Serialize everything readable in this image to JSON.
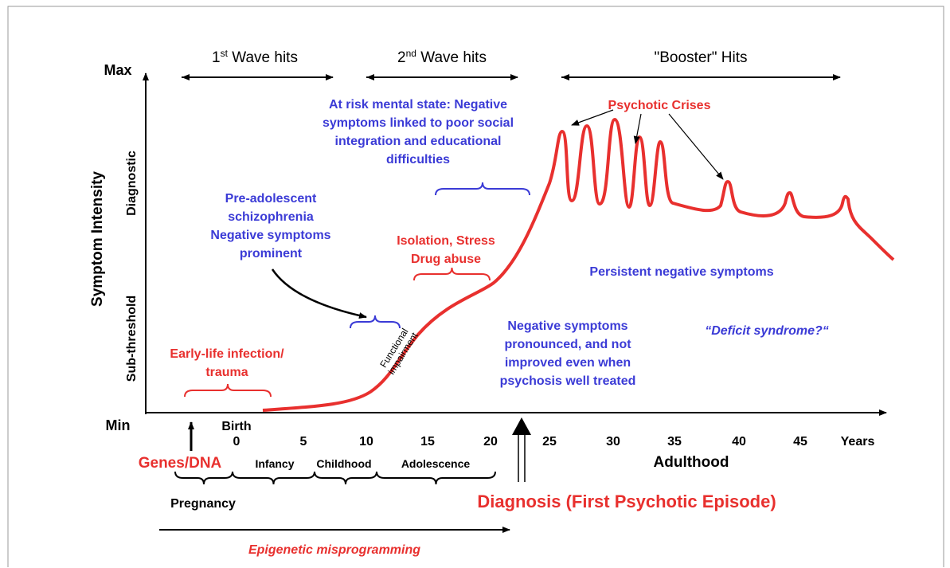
{
  "axes": {
    "y_label": "Symptom Intensity",
    "y_max": "Max",
    "y_min": "Min",
    "y_levels": [
      "Diagnostic",
      "Sub-threshold"
    ],
    "x_ticks": [
      "0",
      "5",
      "10",
      "15",
      "20",
      "25",
      "30",
      "35",
      "40",
      "45",
      "Years"
    ],
    "birth": "Birth"
  },
  "waves": [
    {
      "number": "1",
      "suffix": "st",
      "text": " Wave hits"
    },
    {
      "number": "2",
      "suffix": "nd",
      "text": " Wave hits"
    },
    {
      "text": "\"Booster\" Hits"
    }
  ],
  "annotations": {
    "at_risk": [
      "At risk mental state: Negative",
      "symptoms linked to poor social",
      "integration and educational",
      "difficulties"
    ],
    "psychotic_crises": "Psychotic Crises",
    "pre_adolescent": [
      "Pre-adolescent",
      "schizophrenia",
      "Negative symptoms",
      "prominent"
    ],
    "isolation": [
      "Isolation, Stress",
      "Drug abuse"
    ],
    "persistent": "Persistent negative symptoms",
    "functional": [
      "Functional",
      "impairment"
    ],
    "pronounced": [
      "Negative symptoms",
      "pronounced, and not",
      "improved even when",
      "psychosis well treated"
    ],
    "deficit": "“Deficit syndrome?“",
    "early_life": [
      "Early-life infection/",
      "trauma"
    ]
  },
  "stages": {
    "genes": "Genes/DNA",
    "infancy": "Infancy",
    "childhood": "Childhood",
    "adolescence": "Adolescence",
    "adulthood": "Adulthood",
    "pregnancy": "Pregnancy",
    "diagnosis": "Diagnosis (First Psychotic Episode)",
    "epigenetic": "Epigenetic misprogramming"
  }
}
